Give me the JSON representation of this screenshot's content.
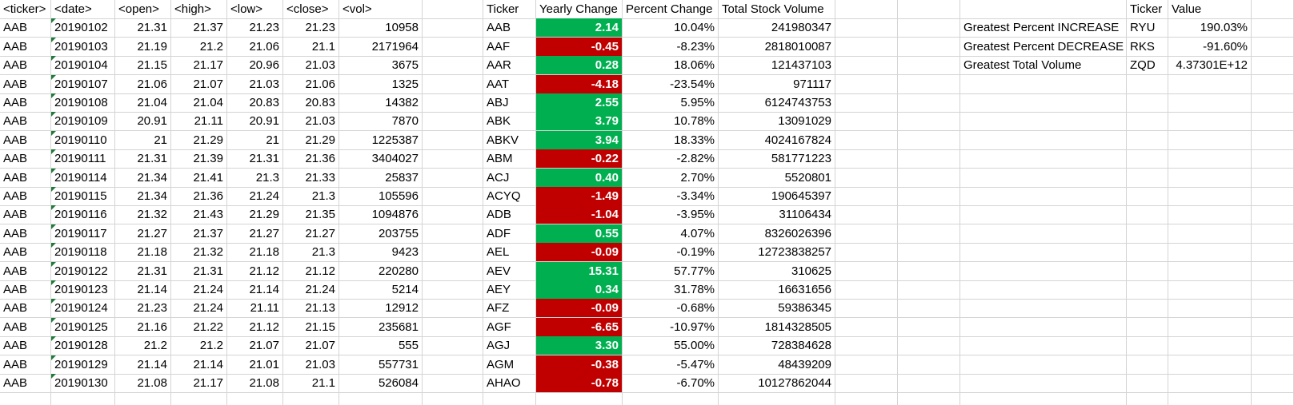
{
  "sheet": {
    "raw_headers": [
      "<ticker>",
      "<date>",
      "<open>",
      "<high>",
      "<low>",
      "<close>",
      "<vol>"
    ],
    "summary_headers": [
      "Ticker",
      "Yearly Change",
      "Percent Change",
      "Total Stock Volume"
    ],
    "greatest_headers": [
      "Ticker",
      "Value"
    ],
    "raw_rows": [
      [
        "AAB",
        "20190102",
        "21.31",
        "21.37",
        "21.23",
        "21.23",
        "10958"
      ],
      [
        "AAB",
        "20190103",
        "21.19",
        "21.2",
        "21.06",
        "21.1",
        "2171964"
      ],
      [
        "AAB",
        "20190104",
        "21.15",
        "21.17",
        "20.96",
        "21.03",
        "3675"
      ],
      [
        "AAB",
        "20190107",
        "21.06",
        "21.07",
        "21.03",
        "21.06",
        "1325"
      ],
      [
        "AAB",
        "20190108",
        "21.04",
        "21.04",
        "20.83",
        "20.83",
        "14382"
      ],
      [
        "AAB",
        "20190109",
        "20.91",
        "21.11",
        "20.91",
        "21.03",
        "7870"
      ],
      [
        "AAB",
        "20190110",
        "21",
        "21.29",
        "21",
        "21.29",
        "1225387"
      ],
      [
        "AAB",
        "20190111",
        "21.31",
        "21.39",
        "21.31",
        "21.36",
        "3404027"
      ],
      [
        "AAB",
        "20190114",
        "21.34",
        "21.41",
        "21.3",
        "21.33",
        "25837"
      ],
      [
        "AAB",
        "20190115",
        "21.34",
        "21.36",
        "21.24",
        "21.3",
        "105596"
      ],
      [
        "AAB",
        "20190116",
        "21.32",
        "21.43",
        "21.29",
        "21.35",
        "1094876"
      ],
      [
        "AAB",
        "20190117",
        "21.27",
        "21.37",
        "21.27",
        "21.27",
        "203755"
      ],
      [
        "AAB",
        "20190118",
        "21.18",
        "21.32",
        "21.18",
        "21.3",
        "9423"
      ],
      [
        "AAB",
        "20190122",
        "21.31",
        "21.31",
        "21.12",
        "21.12",
        "220280"
      ],
      [
        "AAB",
        "20190123",
        "21.14",
        "21.24",
        "21.14",
        "21.24",
        "5214"
      ],
      [
        "AAB",
        "20190124",
        "21.23",
        "21.24",
        "21.11",
        "21.13",
        "12912"
      ],
      [
        "AAB",
        "20190125",
        "21.16",
        "21.22",
        "21.12",
        "21.15",
        "235681"
      ],
      [
        "AAB",
        "20190128",
        "21.2",
        "21.2",
        "21.07",
        "21.07",
        "555"
      ],
      [
        "AAB",
        "20190129",
        "21.14",
        "21.14",
        "21.01",
        "21.03",
        "557731"
      ],
      [
        "AAB",
        "20190130",
        "21.08",
        "21.17",
        "21.08",
        "21.1",
        "526084"
      ]
    ],
    "summary_rows": [
      [
        "AAB",
        "2.14",
        "10.04%",
        "241980347",
        "positive"
      ],
      [
        "AAF",
        "-0.45",
        "-8.23%",
        "2818010087",
        "negative"
      ],
      [
        "AAR",
        "0.28",
        "18.06%",
        "121437103",
        "positive"
      ],
      [
        "AAT",
        "-4.18",
        "-23.54%",
        "971117",
        "negative"
      ],
      [
        "ABJ",
        "2.55",
        "5.95%",
        "6124743753",
        "positive"
      ],
      [
        "ABK",
        "3.79",
        "10.78%",
        "13091029",
        "positive"
      ],
      [
        "ABKV",
        "3.94",
        "18.33%",
        "4024167824",
        "positive"
      ],
      [
        "ABM",
        "-0.22",
        "-2.82%",
        "581771223",
        "negative"
      ],
      [
        "ACJ",
        "0.40",
        "2.70%",
        "5520801",
        "positive"
      ],
      [
        "ACYQ",
        "-1.49",
        "-3.34%",
        "190645397",
        "negative"
      ],
      [
        "ADB",
        "-1.04",
        "-3.95%",
        "31106434",
        "negative"
      ],
      [
        "ADF",
        "0.55",
        "4.07%",
        "8326026396",
        "positive"
      ],
      [
        "AEL",
        "-0.09",
        "-0.19%",
        "12723838257",
        "negative"
      ],
      [
        "AEV",
        "15.31",
        "57.77%",
        "310625",
        "positive"
      ],
      [
        "AEY",
        "0.34",
        "31.78%",
        "16631656",
        "positive"
      ],
      [
        "AFZ",
        "-0.09",
        "-0.68%",
        "59386345",
        "negative"
      ],
      [
        "AGF",
        "-6.65",
        "-10.97%",
        "1814328505",
        "negative"
      ],
      [
        "AGJ",
        "3.30",
        "55.00%",
        "728384628",
        "positive"
      ],
      [
        "AGM",
        "-0.38",
        "-5.47%",
        "48439209",
        "negative"
      ],
      [
        "AHAO",
        "-0.78",
        "-6.70%",
        "10127862044",
        "negative"
      ]
    ],
    "greatest_rows": [
      [
        "Greatest Percent INCREASE",
        "RYU",
        "190.03%"
      ],
      [
        "Greatest Percent DECREASE",
        "RKS",
        "-91.60%"
      ],
      [
        "Greatest Total Volume",
        "ZQD",
        "4.37301E+12"
      ]
    ],
    "colors": {
      "positive": "#00b050",
      "negative": "#c00000",
      "gridline": "#d4d4d4",
      "text_flag": "#1f7a3a"
    }
  }
}
